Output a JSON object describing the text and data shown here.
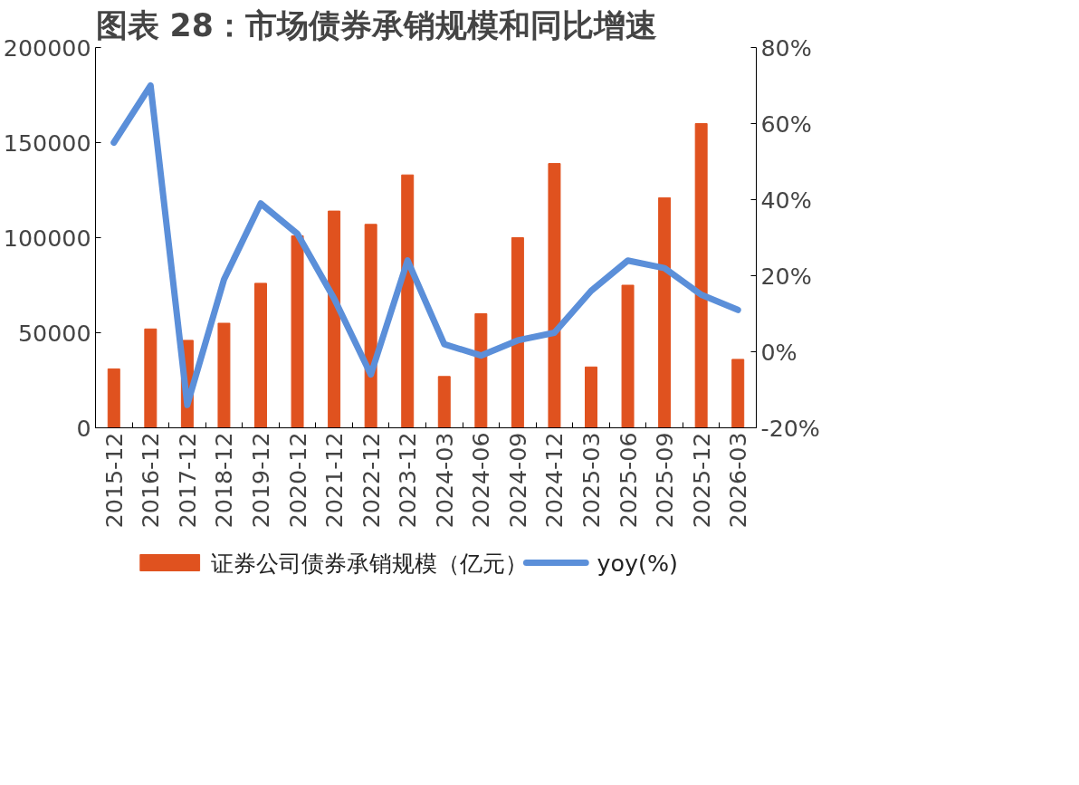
{
  "chart_data": {
    "type": "bar",
    "title": "图表 28：市场债券承销规模和同比增速",
    "categories": [
      "2015-12",
      "2016-12",
      "2017-12",
      "2018-12",
      "2019-12",
      "2020-12",
      "2021-12",
      "2022-12",
      "2023-12",
      "2024-03",
      "2024-06",
      "2024-09",
      "2024-12",
      "2025-03",
      "2025-06",
      "2025-09",
      "2025-12",
      "2026-03"
    ],
    "series": [
      {
        "name": "证券公司债券承销规模（亿元）",
        "color": "#e0521f",
        "values": [
          31000,
          52000,
          46000,
          55000,
          76000,
          101000,
          114000,
          107000,
          133000,
          27000,
          60000,
          100000,
          139000,
          32000,
          75000,
          121000,
          160000,
          36000
        ]
      },
      {
        "name": "yoy(%)",
        "type": "line",
        "axis": "y2",
        "color": "#5b8fd9",
        "values": [
          55,
          70,
          -14,
          19,
          39,
          31,
          14,
          -6,
          24,
          2,
          -1,
          3,
          5,
          16,
          24,
          22,
          15,
          11
        ]
      }
    ],
    "ylim": [
      0,
      200000
    ],
    "yticks": [
      0,
      50000,
      100000,
      150000,
      200000
    ],
    "y2lim": [
      -20,
      80
    ],
    "y2ticks": [
      {
        "value": -20,
        "label": "-20%"
      },
      {
        "value": 0,
        "label": "0%"
      },
      {
        "value": 20,
        "label": "20%"
      },
      {
        "value": 40,
        "label": "40%"
      },
      {
        "value": 60,
        "label": "60%"
      },
      {
        "value": 80,
        "label": "80%"
      }
    ],
    "grid": false,
    "legend": "bottom",
    "line_style": "solid",
    "marker": "none"
  }
}
